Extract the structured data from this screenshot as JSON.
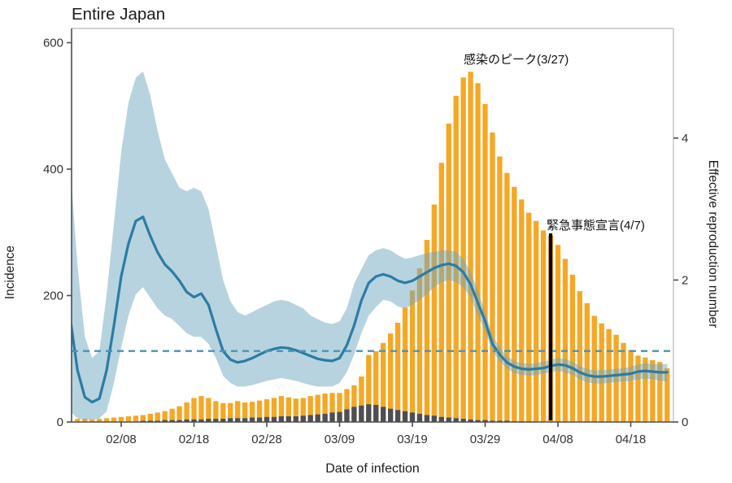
{
  "title": "Entire Japan",
  "axes": {
    "left": {
      "label": "Incidence",
      "ticks": [
        0,
        200,
        400,
        600
      ],
      "range": [
        0,
        622
      ]
    },
    "right": {
      "label": "Effective reproduction number",
      "ticks": [
        0,
        2,
        4
      ],
      "range": [
        0,
        5.55
      ]
    },
    "bottom": {
      "label": "Date of infection",
      "ticks": [
        "02/08",
        "02/18",
        "02/28",
        "03/09",
        "03/19",
        "03/29",
        "04/08",
        "04/18"
      ]
    }
  },
  "annotations": {
    "peak": {
      "text": "感染のピーク(3/27)",
      "date": "03/27"
    },
    "emergency": {
      "text": "緊急事態宣言(4/7)",
      "date": "04/07"
    }
  },
  "reference_line": {
    "value": 1,
    "axis": "right"
  },
  "colors": {
    "bar": "#F6A723",
    "bar_dark": "#4C4F54",
    "rt_line": "#2B7CA3",
    "band": "rgba(111,167,191,0.5)",
    "dashed": "#4A93B8",
    "event_line": "#000000",
    "axis_dark": "#4D4D4D",
    "axis_light": "#C3C3C3",
    "tick_text": "#333333"
  },
  "chart_data": {
    "type": "combo-bar-line",
    "title": "Entire Japan",
    "xlabel": "Date of infection",
    "ylabel_left": "Incidence",
    "ylabel_right": "Effective reproduction number",
    "ylim_left": [
      0,
      622
    ],
    "ylim_right": [
      0,
      5.55
    ],
    "grid": false,
    "legend": "none",
    "x_dates": [
      "02/01",
      "02/02",
      "02/03",
      "02/04",
      "02/05",
      "02/06",
      "02/07",
      "02/08",
      "02/09",
      "02/10",
      "02/11",
      "02/12",
      "02/13",
      "02/14",
      "02/15",
      "02/16",
      "02/17",
      "02/18",
      "02/19",
      "02/20",
      "02/21",
      "02/22",
      "02/23",
      "02/24",
      "02/25",
      "02/26",
      "02/27",
      "02/28",
      "02/29",
      "03/01",
      "03/02",
      "03/03",
      "03/04",
      "03/05",
      "03/06",
      "03/07",
      "03/08",
      "03/09",
      "03/10",
      "03/11",
      "03/12",
      "03/13",
      "03/14",
      "03/15",
      "03/16",
      "03/17",
      "03/18",
      "03/19",
      "03/20",
      "03/21",
      "03/22",
      "03/23",
      "03/24",
      "03/25",
      "03/26",
      "03/27",
      "03/28",
      "03/29",
      "03/30",
      "03/31",
      "04/01",
      "04/02",
      "04/03",
      "04/04",
      "04/05",
      "04/06",
      "04/07",
      "04/08",
      "04/09",
      "04/10",
      "04/11",
      "04/12",
      "04/13",
      "04/14",
      "04/15",
      "04/16",
      "04/17",
      "04/18",
      "04/19",
      "04/20",
      "04/21",
      "04/22",
      "04/23"
    ],
    "series": [
      {
        "name": "incidence_total_bars",
        "axis": "left",
        "values": [
          null,
          5,
          5,
          4,
          5,
          6,
          7,
          8,
          9,
          10,
          11,
          13,
          15,
          17,
          21,
          25,
          31,
          38,
          41,
          38,
          33,
          30,
          30,
          33,
          31,
          32,
          34,
          36,
          38,
          41,
          39,
          37,
          38,
          41,
          43,
          45,
          46,
          46,
          52,
          58,
          72,
          106,
          112,
          125,
          140,
          157,
          181,
          208,
          243,
          288,
          344,
          410,
          472,
          516,
          545,
          554,
          536,
          503,
          458,
          420,
          394,
          372,
          352,
          331,
          318,
          303,
          295,
          280,
          258,
          233,
          207,
          188,
          168,
          156,
          147,
          138,
          125,
          114,
          105,
          102,
          98,
          95,
          85
        ]
      },
      {
        "name": "incidence_dark_bars",
        "axis": "left",
        "values": [
          0,
          0,
          0,
          0,
          0,
          0,
          0,
          0,
          0,
          0,
          2,
          2,
          2,
          3,
          3,
          3,
          4,
          4,
          4,
          5,
          5,
          5,
          6,
          6,
          6,
          7,
          7,
          8,
          8,
          9,
          9,
          9,
          10,
          11,
          12,
          13,
          15,
          16,
          20,
          24,
          26,
          28,
          27,
          24,
          21,
          19,
          17,
          15,
          13,
          11,
          10,
          8,
          7,
          6,
          5,
          4,
          3,
          3,
          2,
          2,
          2,
          1,
          1,
          1,
          0,
          0,
          0,
          0,
          0,
          0,
          0,
          0,
          0,
          0,
          0,
          0,
          0,
          0,
          0,
          0,
          0,
          0,
          0
        ]
      },
      {
        "name": "effective_reproduction_number",
        "axis": "right",
        "values": [
          1.45,
          0.73,
          0.35,
          0.28,
          0.33,
          0.73,
          1.36,
          2.05,
          2.51,
          2.83,
          2.89,
          2.62,
          2.39,
          2.22,
          2.12,
          1.99,
          1.83,
          1.76,
          1.81,
          1.65,
          1.31,
          1.0,
          0.88,
          0.84,
          0.86,
          0.9,
          0.95,
          1.0,
          1.03,
          1.05,
          1.04,
          1.01,
          0.97,
          0.93,
          0.89,
          0.87,
          0.86,
          0.9,
          1.08,
          1.36,
          1.71,
          1.96,
          2.05,
          2.08,
          2.05,
          1.99,
          1.96,
          1.99,
          2.05,
          2.11,
          2.17,
          2.21,
          2.23,
          2.2,
          2.11,
          1.94,
          1.68,
          1.42,
          1.1,
          0.95,
          0.84,
          0.78,
          0.75,
          0.74,
          0.75,
          0.76,
          0.79,
          0.81,
          0.8,
          0.76,
          0.7,
          0.66,
          0.64,
          0.64,
          0.65,
          0.66,
          0.67,
          0.68,
          0.71,
          0.72,
          0.71,
          0.7,
          0.7
        ]
      },
      {
        "name": "rt_upper_ci",
        "axis": "right",
        "values": [
          3.6,
          2.2,
          1.2,
          0.9,
          1.0,
          1.8,
          2.8,
          3.8,
          4.5,
          4.85,
          4.94,
          4.6,
          4.1,
          3.7,
          3.5,
          3.3,
          3.25,
          3.3,
          3.25,
          3.0,
          2.5,
          2.0,
          1.7,
          1.55,
          1.5,
          1.55,
          1.6,
          1.65,
          1.7,
          1.72,
          1.7,
          1.65,
          1.6,
          1.5,
          1.45,
          1.4,
          1.38,
          1.42,
          1.6,
          1.95,
          2.15,
          2.35,
          2.42,
          2.45,
          2.42,
          2.35,
          2.3,
          2.32,
          2.35,
          2.38,
          2.4,
          2.42,
          2.42,
          2.4,
          2.3,
          2.12,
          1.85,
          1.55,
          1.22,
          1.05,
          0.93,
          0.86,
          0.83,
          0.82,
          0.83,
          0.85,
          0.88,
          0.9,
          0.89,
          0.85,
          0.79,
          0.75,
          0.73,
          0.73,
          0.74,
          0.75,
          0.76,
          0.78,
          0.81,
          0.83,
          0.82,
          0.81,
          0.82
        ]
      },
      {
        "name": "rt_lower_ci",
        "axis": "right",
        "values": [
          0.15,
          0.05,
          0.03,
          0.03,
          0.05,
          0.15,
          0.55,
          1.05,
          1.5,
          1.8,
          1.9,
          1.75,
          1.6,
          1.5,
          1.45,
          1.35,
          1.25,
          1.2,
          1.2,
          1.1,
          0.9,
          0.65,
          0.55,
          0.5,
          0.5,
          0.52,
          0.55,
          0.58,
          0.6,
          0.62,
          0.6,
          0.58,
          0.55,
          0.52,
          0.5,
          0.5,
          0.5,
          0.55,
          0.7,
          0.95,
          1.25,
          1.5,
          1.62,
          1.72,
          1.7,
          1.63,
          1.6,
          1.65,
          1.72,
          1.8,
          1.9,
          1.97,
          2.0,
          1.97,
          1.9,
          1.75,
          1.5,
          1.28,
          1.0,
          0.85,
          0.75,
          0.69,
          0.66,
          0.65,
          0.66,
          0.68,
          0.7,
          0.72,
          0.7,
          0.66,
          0.6,
          0.56,
          0.54,
          0.54,
          0.55,
          0.56,
          0.57,
          0.58,
          0.6,
          0.61,
          0.6,
          0.58,
          0.57
        ]
      }
    ]
  }
}
